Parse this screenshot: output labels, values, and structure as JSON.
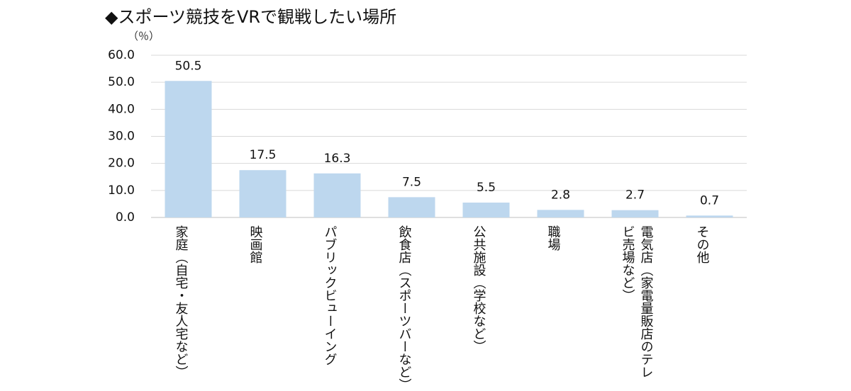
{
  "chart_data": {
    "type": "bar",
    "title": "◆スポーツ競技をVRで観戦したい場所",
    "ylabel": "（％）",
    "xlabel": "",
    "ylim": [
      0,
      60
    ],
    "yticks": [
      "0.0",
      "10.0",
      "20.0",
      "30.0",
      "40.0",
      "50.0",
      "60.0"
    ],
    "grid": true,
    "bar_color": "#bdd7ee",
    "categories": [
      "家庭（自宅・友人宅など）",
      "映画館",
      "パブリックビューイング",
      "飲食店（スポーツバーなど）",
      "公共施設（学校など）",
      "職場",
      "電気店（家電量販店のテレビ売場など）",
      "その他"
    ],
    "values": [
      50.5,
      17.5,
      16.3,
      7.5,
      5.5,
      2.8,
      2.7,
      0.7
    ],
    "value_labels": [
      "50.5",
      "17.5",
      "16.3",
      "7.5",
      "5.5",
      "2.8",
      "2.7",
      "0.7"
    ]
  }
}
